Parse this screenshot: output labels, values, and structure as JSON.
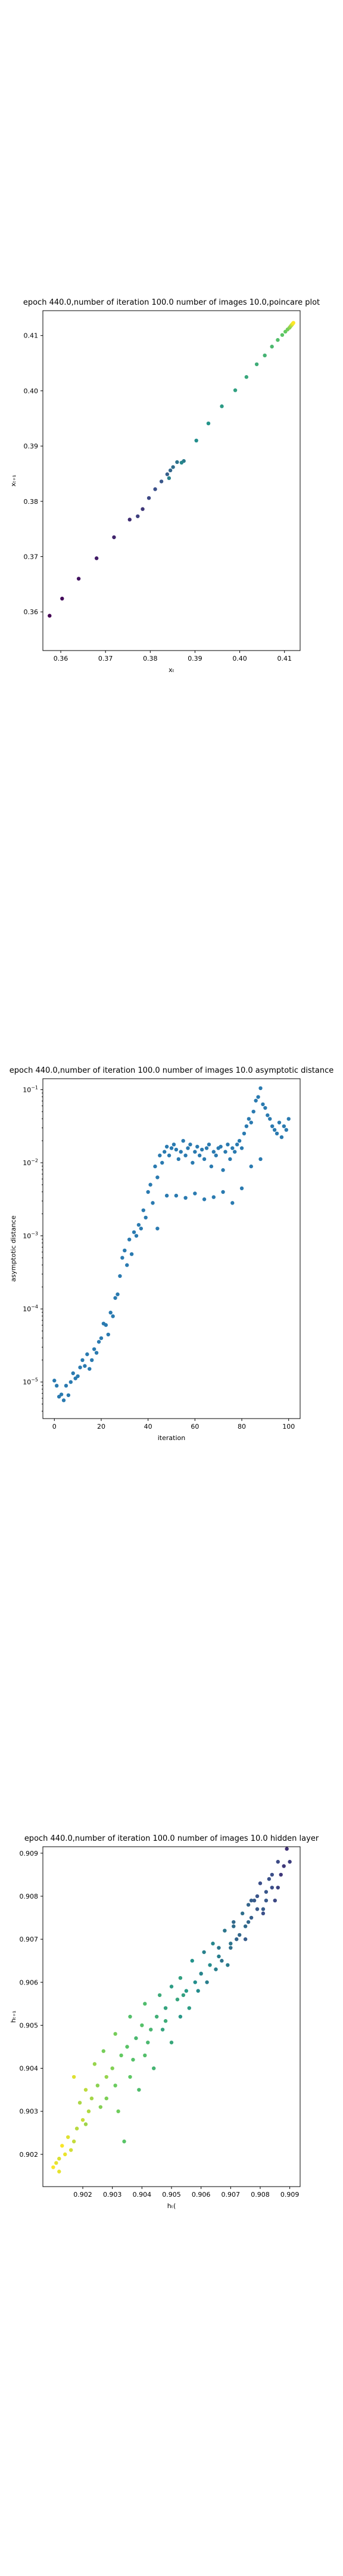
{
  "chart_data": [
    {
      "type": "scatter",
      "title": "epoch 440.0,number of iteration 100.0 number of images 10.0,poincare plot",
      "xlabel": "xₜ",
      "ylabel": "xₜ₊₁",
      "xlim": [
        0.356,
        0.4135
      ],
      "ylim": [
        0.353,
        0.4145
      ],
      "xticks": [
        0.36,
        0.37,
        0.38,
        0.39,
        0.4,
        0.41
      ],
      "yticks": [
        0.36,
        0.37,
        0.38,
        0.39,
        0.4,
        0.41
      ],
      "tick_format": "2",
      "colormap": "viridis",
      "grid": false,
      "points": [
        [
          0.3575,
          0.3593
        ],
        [
          0.3603,
          0.3624
        ],
        [
          0.364,
          0.366
        ],
        [
          0.368,
          0.3697
        ],
        [
          0.3719,
          0.3735
        ],
        [
          0.3754,
          0.3767
        ],
        [
          0.3783,
          0.3786
        ],
        [
          0.3772,
          0.3773
        ],
        [
          0.3797,
          0.3806
        ],
        [
          0.3811,
          0.3822
        ],
        [
          0.3825,
          0.3836
        ],
        [
          0.3838,
          0.3849
        ],
        [
          0.3845,
          0.3856
        ],
        [
          0.3851,
          0.3862
        ],
        [
          0.386,
          0.3871
        ],
        [
          0.3875,
          0.3873
        ],
        [
          0.3842,
          0.3842
        ],
        [
          0.387,
          0.387
        ],
        [
          0.3903,
          0.391
        ],
        [
          0.393,
          0.3941
        ],
        [
          0.396,
          0.3972
        ],
        [
          0.399,
          0.4001
        ],
        [
          0.4015,
          0.4025
        ],
        [
          0.4038,
          0.4048
        ],
        [
          0.4056,
          0.4064
        ],
        [
          0.4072,
          0.408
        ],
        [
          0.4085,
          0.4092
        ],
        [
          0.4095,
          0.4101
        ],
        [
          0.4102,
          0.4107
        ],
        [
          0.4107,
          0.4111
        ],
        [
          0.4111,
          0.4114
        ],
        [
          0.4113,
          0.4116
        ],
        [
          0.4115,
          0.4118
        ],
        [
          0.4116,
          0.4119
        ],
        [
          0.4117,
          0.412
        ],
        [
          0.4118,
          0.4121
        ],
        [
          0.4119,
          0.4122
        ],
        [
          0.412,
          0.4123
        ]
      ]
    },
    {
      "type": "scatter",
      "title": "epoch 440.0,number of iteration 100.0  number of images 10.0 asymptotic distance",
      "xlabel": "iteration",
      "ylabel": "asymptotic distance",
      "xlim": [
        -4.9,
        104.9
      ],
      "ylim": [
        -5.5,
        -0.85
      ],
      "yscale": "log",
      "xticks": [
        0,
        20,
        40,
        60,
        80,
        100
      ],
      "yticks_exp": [
        -5,
        -4,
        -3,
        -2,
        -1
      ],
      "tick_base": "10",
      "color": "#2a7ab0",
      "grid": false,
      "points": [
        [
          0,
          -4.98
        ],
        [
          1,
          -5.05
        ],
        [
          2,
          -5.2
        ],
        [
          3,
          -5.17
        ],
        [
          4,
          -5.25
        ],
        [
          5,
          -5.05
        ],
        [
          6,
          -5.18
        ],
        [
          7,
          -5.0
        ],
        [
          8,
          -4.88
        ],
        [
          9,
          -4.95
        ],
        [
          10,
          -4.92
        ],
        [
          11,
          -4.8
        ],
        [
          12,
          -4.7
        ],
        [
          13,
          -4.78
        ],
        [
          14,
          -4.62
        ],
        [
          15,
          -4.82
        ],
        [
          16,
          -4.7
        ],
        [
          17,
          -4.55
        ],
        [
          18,
          -4.6
        ],
        [
          19,
          -4.45
        ],
        [
          20,
          -4.4
        ],
        [
          21,
          -4.2
        ],
        [
          22,
          -4.22
        ],
        [
          23,
          -4.35
        ],
        [
          24,
          -4.05
        ],
        [
          25,
          -4.1
        ],
        [
          26,
          -3.85
        ],
        [
          27,
          -3.8
        ],
        [
          28,
          -3.55
        ],
        [
          29,
          -3.3
        ],
        [
          30,
          -3.2
        ],
        [
          31,
          -3.4
        ],
        [
          32,
          -3.05
        ],
        [
          33,
          -3.25
        ],
        [
          34,
          -2.95
        ],
        [
          35,
          -3.0
        ],
        [
          36,
          -2.85
        ],
        [
          37,
          -2.9
        ],
        [
          38,
          -2.65
        ],
        [
          39,
          -2.75
        ],
        [
          40,
          -2.4
        ],
        [
          41,
          -2.3
        ],
        [
          42,
          -2.55
        ],
        [
          43,
          -2.05
        ],
        [
          44,
          -2.2
        ],
        [
          45,
          -1.9
        ],
        [
          46,
          -2.0
        ],
        [
          47,
          -1.85
        ],
        [
          48,
          -1.78
        ],
        [
          49,
          -1.9
        ],
        [
          50,
          -1.8
        ],
        [
          51,
          -1.75
        ],
        [
          52,
          -1.82
        ],
        [
          53,
          -1.95
        ],
        [
          54,
          -1.85
        ],
        [
          55,
          -1.7
        ],
        [
          56,
          -1.9
        ],
        [
          57,
          -1.8
        ],
        [
          58,
          -1.75
        ],
        [
          59,
          -2.0
        ],
        [
          60,
          -1.85
        ],
        [
          61,
          -1.78
        ],
        [
          62,
          -1.9
        ],
        [
          63,
          -1.82
        ],
        [
          64,
          -1.95
        ],
        [
          65,
          -1.8
        ],
        [
          66,
          -1.75
        ],
        [
          67,
          -2.05
        ],
        [
          68,
          -1.85
        ],
        [
          69,
          -1.9
        ],
        [
          70,
          -1.8
        ],
        [
          71,
          -1.78
        ],
        [
          72,
          -2.1
        ],
        [
          73,
          -1.85
        ],
        [
          74,
          -1.75
        ],
        [
          75,
          -1.95
        ],
        [
          76,
          -1.8
        ],
        [
          77,
          -1.85
        ],
        [
          78,
          -1.75
        ],
        [
          79,
          -1.7
        ],
        [
          80,
          -1.8
        ],
        [
          81,
          -1.6
        ],
        [
          82,
          -1.5
        ],
        [
          83,
          -1.4
        ],
        [
          84,
          -1.45
        ],
        [
          85,
          -1.3
        ],
        [
          86,
          -1.15
        ],
        [
          87,
          -1.1
        ],
        [
          88,
          -0.98
        ],
        [
          89,
          -1.2
        ],
        [
          90,
          -1.25
        ],
        [
          91,
          -1.35
        ],
        [
          92,
          -1.4
        ],
        [
          93,
          -1.5
        ],
        [
          94,
          -1.55
        ],
        [
          95,
          -1.6
        ],
        [
          96,
          -1.45
        ],
        [
          97,
          -1.65
        ],
        [
          98,
          -1.5
        ],
        [
          99,
          -1.55
        ],
        [
          100,
          -1.4
        ],
        [
          44,
          -2.9
        ],
        [
          48,
          -2.45
        ],
        [
          52,
          -2.45
        ],
        [
          56,
          -2.48
        ],
        [
          60,
          -2.42
        ],
        [
          64,
          -2.5
        ],
        [
          68,
          -2.47
        ],
        [
          72,
          -2.4
        ],
        [
          76,
          -2.55
        ],
        [
          80,
          -2.35
        ],
        [
          84,
          -2.05
        ],
        [
          88,
          -1.95
        ]
      ]
    },
    {
      "type": "scatter",
      "title": "epoch 440.0,number of iteration 100.0  number of images 10.0 hidden layer",
      "xlabel": "hₜ(",
      "ylabel": "hₜ₊₁",
      "xlim": [
        0.90065,
        0.90935
      ],
      "ylim": [
        0.90125,
        0.90915
      ],
      "xticks": [
        0.902,
        0.903,
        0.904,
        0.905,
        0.906,
        0.907,
        0.908,
        0.909
      ],
      "yticks": [
        0.902,
        0.903,
        0.904,
        0.905,
        0.906,
        0.907,
        0.908,
        0.909
      ],
      "tick_format": "3",
      "colormap": "viridis",
      "grid": false,
      "points": [
        [
          0.9089,
          0.9091
        ],
        [
          0.9088,
          0.9087
        ],
        [
          0.9086,
          0.9082
        ],
        [
          0.9085,
          0.9079
        ],
        [
          0.9084,
          0.9085
        ],
        [
          0.9082,
          0.9081
        ],
        [
          0.9081,
          0.9077
        ],
        [
          0.908,
          0.9083
        ],
        [
          0.9079,
          0.908
        ],
        [
          0.9078,
          0.9079
        ],
        [
          0.9077,
          0.9075
        ],
        [
          0.9076,
          0.9078
        ],
        [
          0.9075,
          0.9073
        ],
        [
          0.9074,
          0.9076
        ],
        [
          0.9072,
          0.907
        ],
        [
          0.9071,
          0.9074
        ],
        [
          0.907,
          0.9068
        ],
        [
          0.9068,
          0.9072
        ],
        [
          0.9066,
          0.9066
        ],
        [
          0.9064,
          0.9069
        ],
        [
          0.9063,
          0.9064
        ],
        [
          0.9061,
          0.9067
        ],
        [
          0.906,
          0.9062
        ],
        [
          0.9058,
          0.906
        ],
        [
          0.9057,
          0.9065
        ],
        [
          0.9055,
          0.9058
        ],
        [
          0.9053,
          0.9061
        ],
        [
          0.9052,
          0.9056
        ],
        [
          0.905,
          0.9059
        ],
        [
          0.9048,
          0.9054
        ],
        [
          0.9046,
          0.9057
        ],
        [
          0.9045,
          0.9052
        ],
        [
          0.9043,
          0.9049
        ],
        [
          0.9041,
          0.9055
        ],
        [
          0.904,
          0.905
        ],
        [
          0.9038,
          0.9047
        ],
        [
          0.9036,
          0.9052
        ],
        [
          0.9035,
          0.9045
        ],
        [
          0.9033,
          0.9043
        ],
        [
          0.9031,
          0.9048
        ],
        [
          0.903,
          0.904
        ],
        [
          0.9028,
          0.9038
        ],
        [
          0.9027,
          0.9044
        ],
        [
          0.9025,
          0.9036
        ],
        [
          0.9024,
          0.9041
        ],
        [
          0.9023,
          0.9033
        ],
        [
          0.9022,
          0.903
        ],
        [
          0.9021,
          0.9035
        ],
        [
          0.902,
          0.9028
        ],
        [
          0.9019,
          0.9032
        ],
        [
          0.9018,
          0.9026
        ],
        [
          0.9017,
          0.9023
        ],
        [
          0.9016,
          0.9021
        ],
        [
          0.9015,
          0.9024
        ],
        [
          0.9014,
          0.902
        ],
        [
          0.9013,
          0.9022
        ],
        [
          0.9012,
          0.9019
        ],
        [
          0.9011,
          0.9018
        ],
        [
          0.9012,
          0.9016
        ],
        [
          0.901,
          0.9017
        ],
        [
          0.9032,
          0.903
        ],
        [
          0.9036,
          0.9038
        ],
        [
          0.9041,
          0.9043
        ],
        [
          0.9047,
          0.9049
        ],
        [
          0.9053,
          0.9052
        ],
        [
          0.9059,
          0.9058
        ],
        [
          0.9065,
          0.9063
        ],
        [
          0.907,
          0.9069
        ],
        [
          0.9076,
          0.9074
        ],
        [
          0.9082,
          0.9079
        ],
        [
          0.9087,
          0.9085
        ],
        [
          0.9034,
          0.9023
        ],
        [
          0.9028,
          0.9033
        ],
        [
          0.9039,
          0.9035
        ],
        [
          0.9044,
          0.904
        ],
        [
          0.905,
          0.9046
        ],
        [
          0.9056,
          0.9054
        ],
        [
          0.9062,
          0.906
        ],
        [
          0.9067,
          0.9065
        ],
        [
          0.9073,
          0.9071
        ],
        [
          0.9079,
          0.9077
        ],
        [
          0.9084,
          0.9082
        ],
        [
          0.909,
          0.9088
        ],
        [
          0.9017,
          0.9038
        ],
        [
          0.9021,
          0.9027
        ],
        [
          0.9026,
          0.9031
        ],
        [
          0.9031,
          0.9036
        ],
        [
          0.9037,
          0.9042
        ],
        [
          0.9042,
          0.9046
        ],
        [
          0.9048,
          0.9051
        ],
        [
          0.9054,
          0.9057
        ],
        [
          0.906,
          0.9062
        ],
        [
          0.9066,
          0.9068
        ],
        [
          0.9071,
          0.9073
        ],
        [
          0.9077,
          0.9079
        ],
        [
          0.9083,
          0.9084
        ],
        [
          0.9086,
          0.9088
        ],
        [
          0.9069,
          0.9064
        ],
        [
          0.9075,
          0.907
        ],
        [
          0.9081,
          0.9076
        ]
      ]
    }
  ]
}
